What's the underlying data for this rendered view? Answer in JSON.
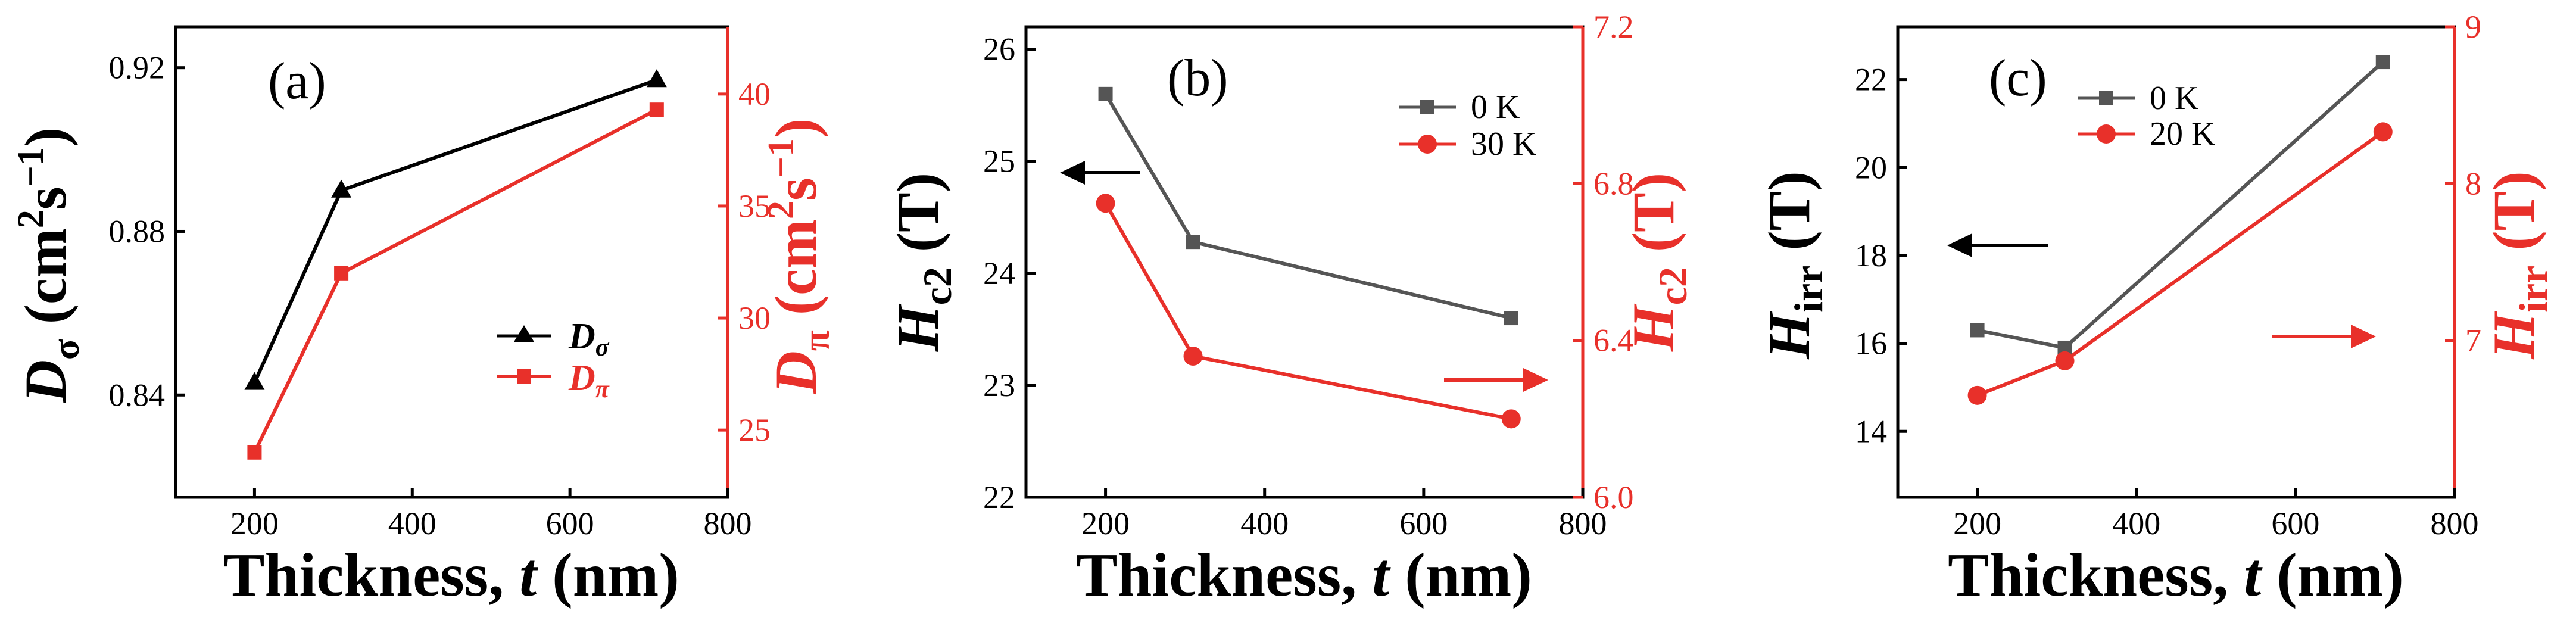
{
  "colors": {
    "black": "#000000",
    "red": "#e8302a",
    "gray": "#555555"
  },
  "chart_data": [
    {
      "id": "a",
      "type": "line",
      "panel_label": "(a)",
      "x": [
        200,
        310,
        710
      ],
      "xlim": [
        100,
        800
      ],
      "xticks": [
        200,
        400,
        600,
        800
      ],
      "xlabel": {
        "main": "Thickness, ",
        "var": "t",
        "unit": " (nm)"
      },
      "ylabel_left": {
        "main": "D",
        "sub": "σ",
        "unit": " (cm",
        "sup": "2",
        "unit2": "s",
        "sup2": "−1",
        "close": ")"
      },
      "ylabel_right": {
        "main": "D",
        "sub": "π",
        "unit": " (cm",
        "sup": "2",
        "unit2": "s",
        "sup2": "−1",
        "close": ")"
      },
      "ylim_left": [
        0.815,
        0.93
      ],
      "yticks_left": [
        0.84,
        0.88,
        0.92
      ],
      "ytick_labels_left": [
        "0.84",
        "0.88",
        "0.92"
      ],
      "ylim_right": [
        22,
        43
      ],
      "yticks_right": [
        25,
        30,
        35,
        40
      ],
      "series": [
        {
          "name": "Dσ",
          "legend_main": "D",
          "legend_sub": "σ",
          "axis": "left",
          "color": "#000000",
          "marker": "triangle",
          "values": [
            0.843,
            0.89,
            0.917
          ]
        },
        {
          "name": "Dπ",
          "legend_main": "D",
          "legend_sub": "π",
          "axis": "right",
          "color": "#e8302a",
          "marker": "square",
          "values": [
            24,
            32,
            39.3
          ]
        }
      ],
      "legend_position": "lower-right"
    },
    {
      "id": "b",
      "type": "line",
      "panel_label": "(b)",
      "x": [
        200,
        310,
        710
      ],
      "xlim": [
        100,
        800
      ],
      "xticks": [
        200,
        400,
        600,
        800
      ],
      "xlabel": {
        "main": "Thickness, ",
        "var": "t",
        "unit": " (nm)"
      },
      "ylabel_left": {
        "main": "H",
        "sub": "c2",
        "unit": " (T)"
      },
      "ylabel_right": {
        "main": "H",
        "sub": "c2",
        "unit": " (T)"
      },
      "ylim_left": [
        22,
        26.2
      ],
      "yticks_left": [
        22,
        23,
        24,
        25,
        26
      ],
      "ytick_labels_left": [
        "22",
        "23",
        "24",
        "25",
        "26"
      ],
      "ylim_right": [
        6.0,
        7.2
      ],
      "yticks_right": [
        6.0,
        6.4,
        6.8,
        7.2
      ],
      "ytick_labels_right": [
        "6.0",
        "6.4",
        "6.8",
        "7.2"
      ],
      "series": [
        {
          "name": "0 K",
          "axis": "left",
          "color": "#555555",
          "marker": "square",
          "values": [
            25.6,
            24.28,
            23.6
          ]
        },
        {
          "name": "30 K",
          "axis": "right",
          "color": "#e8302a",
          "marker": "circle",
          "values": [
            6.75,
            6.36,
            6.2
          ]
        }
      ],
      "legend_position": "top-right",
      "arrows": [
        "left-axis arrow (black, pointing left)",
        "right-axis arrow (red, pointing right)"
      ]
    },
    {
      "id": "c",
      "type": "line",
      "panel_label": "(c)",
      "x": [
        200,
        310,
        710
      ],
      "xlim": [
        100,
        800
      ],
      "xticks": [
        200,
        400,
        600,
        800
      ],
      "xlabel": {
        "main": "Thickness, ",
        "var": "t",
        "unit": " (nm)"
      },
      "ylabel_left": {
        "main": "H",
        "sub": "irr",
        "unit": " (T)"
      },
      "ylabel_right": {
        "main": "H",
        "sub": "irr",
        "unit": " (T)"
      },
      "ylim_left": [
        12.5,
        23.2
      ],
      "yticks_left": [
        14,
        16,
        18,
        20,
        22
      ],
      "ytick_labels_left": [
        "14",
        "16",
        "18",
        "20",
        "22"
      ],
      "ylim_right": [
        6.0,
        9.0
      ],
      "yticks_right": [
        7,
        8,
        9
      ],
      "series": [
        {
          "name": "0 K",
          "axis": "left",
          "color": "#555555",
          "marker": "square",
          "values": [
            16.3,
            15.9,
            22.4
          ]
        },
        {
          "name": "20 K",
          "axis": "right",
          "color": "#e8302a",
          "marker": "circle",
          "values": [
            6.65,
            6.87,
            8.33
          ]
        }
      ],
      "legend_position": "top-left",
      "arrows": [
        "left-axis arrow (black, pointing left)",
        "right-axis arrow (red, pointing right)"
      ]
    }
  ]
}
